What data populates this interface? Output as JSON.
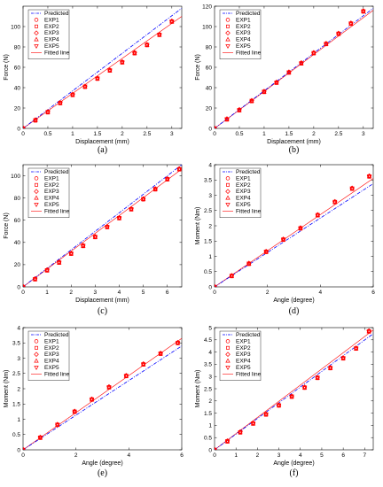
{
  "figure": {
    "caption_labels": [
      "(a)",
      "(b)",
      "(c)",
      "(d)",
      "(e)",
      "(f)"
    ]
  },
  "legend": {
    "entries": [
      {
        "label": "Predicted",
        "marker": "none",
        "line": "dashdot",
        "color": "#0000ff"
      },
      {
        "label": "EXP1",
        "marker": "circle",
        "color": "#ff0000"
      },
      {
        "label": "EXP2",
        "marker": "square",
        "color": "#ff0000"
      },
      {
        "label": "EXP3",
        "marker": "diamond",
        "color": "#ff0000"
      },
      {
        "label": "EXP4",
        "marker": "triangle-up",
        "color": "#ff0000"
      },
      {
        "label": "EXP5",
        "marker": "triangle-down",
        "color": "#ff0000"
      },
      {
        "label": "Fitted line",
        "marker": "none",
        "line": "solid",
        "color": "#ff0000"
      }
    ],
    "position": "top-left"
  },
  "colors": {
    "predicted": "#0000ff",
    "experiment": "#ff0000",
    "axis": "#000000"
  },
  "chart_data": [
    {
      "type": "line",
      "panel": "(a)",
      "xlabel": "Displacement (mm)",
      "ylabel": "Force (N)",
      "xlim": [
        0,
        3.2
      ],
      "ylim": [
        0,
        120
      ],
      "xticks": [
        0,
        0.5,
        1,
        1.5,
        2,
        2.5,
        3
      ],
      "yticks": [
        0,
        20,
        40,
        60,
        80,
        100
      ],
      "grid": false,
      "predicted": {
        "x": [
          0,
          3.2
        ],
        "y": [
          0,
          118
        ]
      },
      "fitted": {
        "x": [
          0,
          3.2
        ],
        "y": [
          0,
          110
        ]
      },
      "experiments": {
        "x": [
          0,
          0.25,
          0.5,
          0.75,
          1.0,
          1.25,
          1.5,
          1.75,
          2.0,
          2.25,
          2.5,
          2.75,
          3.0
        ],
        "y": [
          0,
          8,
          16,
          25,
          33,
          41,
          49,
          57,
          65,
          74,
          82,
          92,
          105
        ]
      }
    },
    {
      "type": "line",
      "panel": "(b)",
      "xlabel": "Displacement (mm)",
      "ylabel": "Force (N)",
      "xlim": [
        0,
        3.2
      ],
      "ylim": [
        0,
        120
      ],
      "xticks": [
        0,
        0.5,
        1,
        1.5,
        2,
        2.5,
        3
      ],
      "yticks": [
        0,
        20,
        40,
        60,
        80,
        100,
        120
      ],
      "grid": false,
      "predicted": {
        "x": [
          0,
          3.2
        ],
        "y": [
          0,
          118
        ]
      },
      "fitted": {
        "x": [
          0,
          3.2
        ],
        "y": [
          0,
          116
        ]
      },
      "experiments": {
        "x": [
          0,
          0.25,
          0.5,
          0.75,
          1.0,
          1.25,
          1.5,
          1.75,
          2.0,
          2.25,
          2.5,
          2.75,
          3.0
        ],
        "y": [
          0,
          9,
          18,
          27,
          36,
          45,
          55,
          64,
          74,
          83,
          93,
          103,
          115
        ]
      }
    },
    {
      "type": "line",
      "panel": "(c)",
      "xlabel": "Displacement (mm)",
      "ylabel": "Force (N)",
      "xlim": [
        0,
        6.6
      ],
      "ylim": [
        0,
        110
      ],
      "xticks": [
        0,
        1,
        2,
        3,
        4,
        5,
        6
      ],
      "yticks": [
        0,
        20,
        40,
        60,
        80,
        100
      ],
      "grid": false,
      "predicted": {
        "x": [
          0,
          6.6
        ],
        "y": [
          0,
          110
        ]
      },
      "fitted": {
        "x": [
          0,
          6.6
        ],
        "y": [
          0,
          106
        ]
      },
      "experiments": {
        "x": [
          0,
          0.5,
          1.0,
          1.5,
          2.0,
          2.5,
          3.0,
          3.5,
          4.0,
          4.5,
          5.0,
          5.5,
          6.0,
          6.5
        ],
        "y": [
          0,
          7,
          15,
          22,
          30,
          37,
          45,
          54,
          62,
          70,
          79,
          88,
          97,
          106
        ]
      }
    },
    {
      "type": "line",
      "panel": "(d)",
      "xlabel": "Angle (degree)",
      "ylabel": "Moment (Nm)",
      "xlim": [
        0,
        6
      ],
      "ylim": [
        0,
        4
      ],
      "xticks": [
        0,
        2,
        4,
        6
      ],
      "yticks": [
        0,
        0.5,
        1,
        1.5,
        2,
        2.5,
        3,
        3.5,
        4
      ],
      "grid": false,
      "predicted": {
        "x": [
          0,
          6
        ],
        "y": [
          0,
          3.38
        ]
      },
      "fitted": {
        "x": [
          0,
          6
        ],
        "y": [
          0,
          3.55
        ]
      },
      "experiments": {
        "x": [
          0,
          0.65,
          1.3,
          1.95,
          2.6,
          3.25,
          3.9,
          4.55,
          5.2,
          5.85
        ],
        "y": [
          0,
          0.36,
          0.76,
          1.15,
          1.55,
          1.92,
          2.35,
          2.78,
          3.22,
          3.62
        ]
      }
    },
    {
      "type": "line",
      "panel": "(e)",
      "xlabel": "Angle (degree)",
      "ylabel": "Moment (Nm)",
      "xlim": [
        0,
        6
      ],
      "ylim": [
        0,
        4
      ],
      "xticks": [
        0,
        2,
        4,
        6
      ],
      "yticks": [
        0,
        0.5,
        1,
        1.5,
        2,
        2.5,
        3,
        3.5,
        4
      ],
      "grid": false,
      "predicted": {
        "x": [
          0,
          6
        ],
        "y": [
          0,
          3.4
        ]
      },
      "fitted": {
        "x": [
          0,
          6
        ],
        "y": [
          0,
          3.65
        ]
      },
      "experiments": {
        "x": [
          0,
          0.65,
          1.3,
          1.95,
          2.6,
          3.25,
          3.9,
          4.55,
          5.2,
          5.85
        ],
        "y": [
          0,
          0.4,
          0.82,
          1.25,
          1.65,
          2.05,
          2.42,
          2.8,
          3.15,
          3.5
        ]
      }
    },
    {
      "type": "line",
      "panel": "(f)",
      "xlabel": "Angle (degree)",
      "ylabel": "Moment (Nm)",
      "xlim": [
        0,
        7.4
      ],
      "ylim": [
        0,
        5
      ],
      "xticks": [
        0,
        1,
        2,
        3,
        4,
        5,
        6,
        7
      ],
      "yticks": [
        0,
        0.5,
        1,
        1.5,
        2,
        2.5,
        3,
        3.5,
        4,
        4.5,
        5
      ],
      "grid": false,
      "predicted": {
        "x": [
          0,
          7.4
        ],
        "y": [
          0,
          4.75
        ]
      },
      "fitted": {
        "x": [
          0,
          7.4
        ],
        "y": [
          0,
          4.9
        ]
      },
      "experiments": {
        "x": [
          0,
          0.6,
          1.2,
          1.8,
          2.4,
          3.0,
          3.6,
          4.2,
          4.8,
          5.4,
          6.0,
          6.6,
          7.2
        ],
        "y": [
          0,
          0.35,
          0.72,
          1.08,
          1.45,
          1.82,
          2.18,
          2.55,
          2.95,
          3.35,
          3.75,
          4.15,
          4.85
        ]
      }
    }
  ]
}
